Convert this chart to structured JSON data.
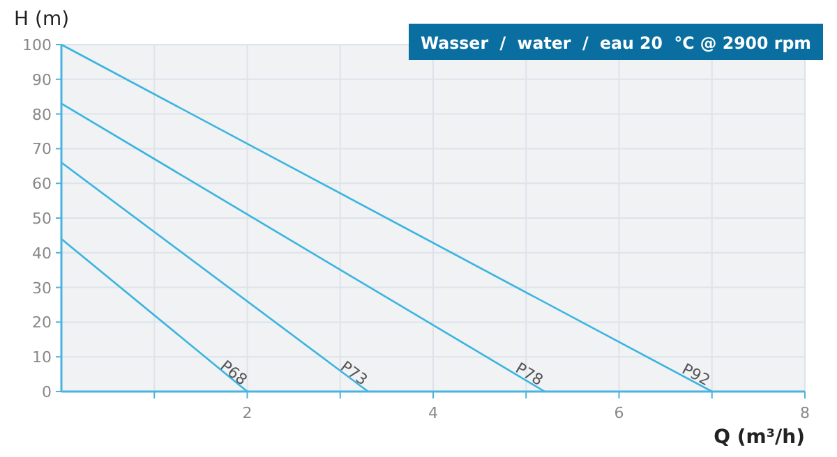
{
  "chart_data": {
    "type": "line",
    "title": "Wasser  /  water  /  eau 20  °C @ 2900 rpm",
    "xlabel": "Q (m³/h)",
    "ylabel": "H (m)",
    "series": [
      {
        "name": "P68",
        "color": "#3ab4e0",
        "x": [
          0,
          2
        ],
        "values": [
          44,
          0
        ]
      },
      {
        "name": "P73",
        "color": "#3ab4e0",
        "x": [
          0,
          3.3
        ],
        "values": [
          66,
          0
        ]
      },
      {
        "name": "P78",
        "color": "#3ab4e0",
        "x": [
          0,
          5.2
        ],
        "values": [
          83,
          0
        ]
      },
      {
        "name": "P92",
        "color": "#3ab4e0",
        "x": [
          0,
          7
        ],
        "values": [
          100,
          0
        ]
      }
    ],
    "xlim": [
      0,
      8
    ],
    "ylim": [
      0,
      100
    ],
    "xticks": [
      {
        "value": 1,
        "label": null
      },
      2,
      {
        "value": 3,
        "label": null
      },
      4,
      {
        "value": 5,
        "label": null
      },
      6,
      {
        "value": 7,
        "label": null
      },
      8
    ],
    "yticks": [
      0,
      10,
      20,
      30,
      40,
      50,
      60,
      70,
      80,
      90,
      100
    ],
    "grid": true,
    "marker": "none",
    "line_style": "solid"
  }
}
